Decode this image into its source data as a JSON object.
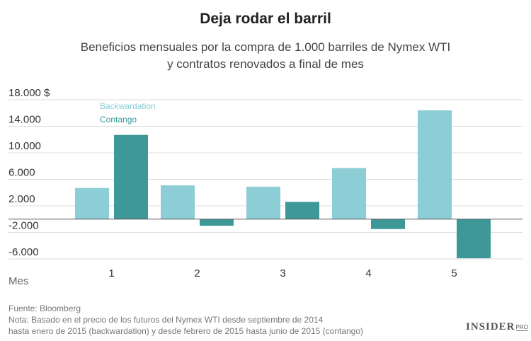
{
  "header": {
    "title": "Deja rodar el barril",
    "subtitle_line1": "Beneficios mensuales por la compra de 1.000 barriles de Nymex WTI",
    "subtitle_line2": "y contratos renovados a final de mes"
  },
  "chart_data": {
    "type": "bar",
    "title": "Deja rodar el barril",
    "subtitle": "Beneficios mensuales por la compra de 1.000 barriles de Nymex WTI y contratos renovados a final de mes",
    "xlabel": "Mes",
    "ylabel": "",
    "categories": [
      "1",
      "2",
      "3",
      "4",
      "5"
    ],
    "series": [
      {
        "name": "Backwardation",
        "color": "#8ccdd6",
        "values": [
          4700,
          5100,
          4900,
          7700,
          16400
        ]
      },
      {
        "name": "Contango",
        "color": "#3f9898",
        "values": [
          12700,
          -1000,
          2600,
          -1500,
          -5900
        ]
      }
    ],
    "y_ticks": [
      {
        "value": 18000,
        "label": "18.000 $"
      },
      {
        "value": 14000,
        "label": "14.000"
      },
      {
        "value": 10000,
        "label": "10.000"
      },
      {
        "value": 6000,
        "label": "6.000"
      },
      {
        "value": 2000,
        "label": "2.000"
      },
      {
        "value": -2000,
        "label": "-2.000"
      },
      {
        "value": -6000,
        "label": "-6.000"
      }
    ],
    "ylim": [
      -6000,
      18000
    ],
    "grid": true,
    "legend_position": "top-left"
  },
  "footer": {
    "source": "Fuente: Bloomberg",
    "note_line1": "Nota: Basado en el precio de los futuros del Nymex WTI desde septiembre de 2014",
    "note_line2": "hasta enero de 2015 (backwardation) y desde febrero de 2015 hasta junio de 2015 (contango)"
  },
  "brand": {
    "name": "INSIDER",
    "suffix": "PRO"
  }
}
